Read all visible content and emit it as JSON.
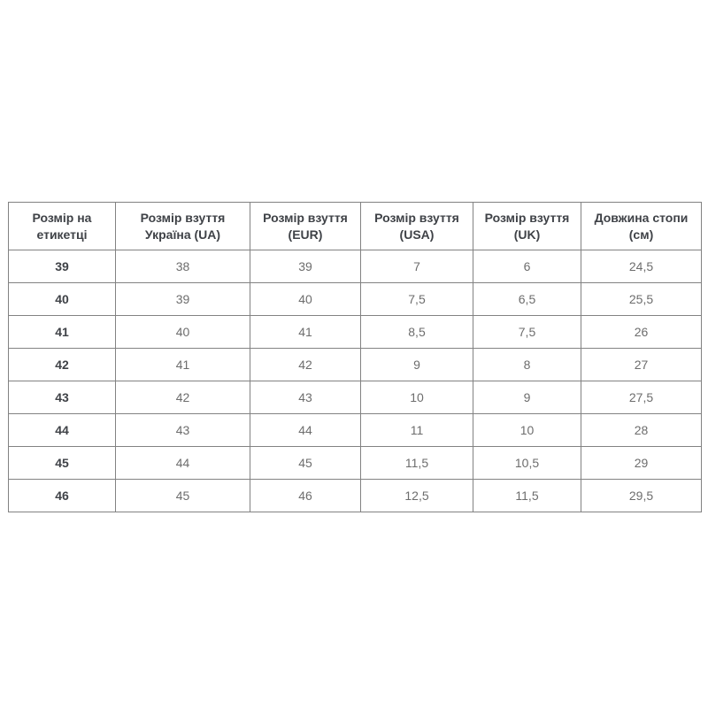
{
  "page": {
    "background_color": "#ffffff"
  },
  "colors": {
    "border": "#828282",
    "header_text": "#3f4247",
    "cell_text": "#6d6d6d",
    "background": "#ffffff"
  },
  "chart_data": {
    "type": "table",
    "title": "",
    "columns": [
      "Розмір на етикетці",
      "Розмір взуття Україна (UA)",
      "Розмір взуття (EUR)",
      "Розмір взуття (USA)",
      "Розмір взуття (UK)",
      "Довжина стопи (см)"
    ],
    "rows": [
      [
        "39",
        "38",
        "39",
        "7",
        "6",
        "24,5"
      ],
      [
        "40",
        "39",
        "40",
        "7,5",
        "6,5",
        "25,5"
      ],
      [
        "41",
        "40",
        "41",
        "8,5",
        "7,5",
        "26"
      ],
      [
        "42",
        "41",
        "42",
        "9",
        "8",
        "27"
      ],
      [
        "43",
        "42",
        "43",
        "10",
        "9",
        "27,5"
      ],
      [
        "44",
        "43",
        "44",
        "11",
        "10",
        "28"
      ],
      [
        "45",
        "44",
        "45",
        "11,5",
        "10,5",
        "29"
      ],
      [
        "46",
        "45",
        "46",
        "12,5",
        "11,5",
        "29,5"
      ]
    ]
  }
}
